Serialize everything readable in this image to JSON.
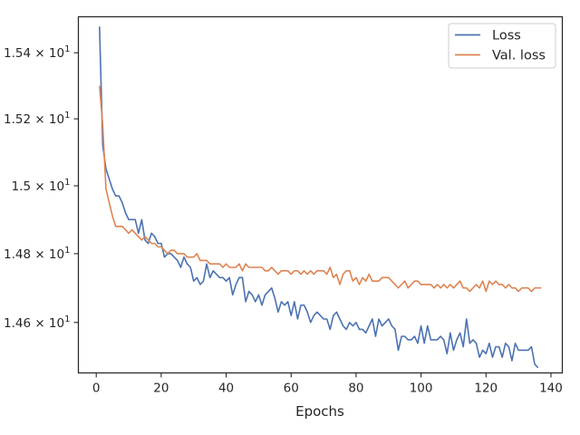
{
  "chart_data": {
    "type": "line",
    "title": "",
    "xlabel": "Epochs",
    "ylabel": "",
    "yscale": "log",
    "xlim": [
      -5.5,
      143.5
    ],
    "ylim": [
      14.455,
      15.51
    ],
    "grid": false,
    "legend_position": "top-right",
    "x_ticks": [
      0,
      20,
      40,
      60,
      80,
      100,
      120,
      140
    ],
    "x_tick_labels": [
      "0",
      "20",
      "40",
      "60",
      "80",
      "100",
      "120",
      "140"
    ],
    "y_ticks": [
      14.6,
      14.8,
      15.0,
      15.2,
      15.4
    ],
    "y_tick_labels": [
      {
        "mant": "1.46",
        "exp": "1"
      },
      {
        "mant": "1.48",
        "exp": "1"
      },
      {
        "mant": "1.5",
        "exp": "1"
      },
      {
        "mant": "1.52",
        "exp": "1"
      },
      {
        "mant": "1.54",
        "exp": "1"
      }
    ],
    "series": [
      {
        "name": "Loss",
        "color": "#4c72b0",
        "x_start": 1,
        "values": [
          15.48,
          15.12,
          15.05,
          15.02,
          14.99,
          14.97,
          14.97,
          14.95,
          14.92,
          14.9,
          14.9,
          14.9,
          14.86,
          14.9,
          14.84,
          14.83,
          14.86,
          14.85,
          14.83,
          14.83,
          14.79,
          14.8,
          14.8,
          14.79,
          14.78,
          14.76,
          14.79,
          14.77,
          14.76,
          14.72,
          14.73,
          14.71,
          14.72,
          14.77,
          14.73,
          14.75,
          14.74,
          14.73,
          14.73,
          14.72,
          14.73,
          14.68,
          14.71,
          14.73,
          14.73,
          14.66,
          14.69,
          14.68,
          14.66,
          14.68,
          14.65,
          14.68,
          14.69,
          14.7,
          14.67,
          14.63,
          14.66,
          14.65,
          14.66,
          14.62,
          14.66,
          14.61,
          14.65,
          14.65,
          14.63,
          14.6,
          14.62,
          14.63,
          14.62,
          14.61,
          14.61,
          14.58,
          14.62,
          14.63,
          14.61,
          14.59,
          14.58,
          14.6,
          14.59,
          14.6,
          14.58,
          14.58,
          14.57,
          14.59,
          14.61,
          14.56,
          14.61,
          14.59,
          14.6,
          14.61,
          14.59,
          14.58,
          14.52,
          14.56,
          14.56,
          14.55,
          14.55,
          14.56,
          14.54,
          14.59,
          14.54,
          14.59,
          14.55,
          14.55,
          14.55,
          14.56,
          14.55,
          14.51,
          14.57,
          14.52,
          14.55,
          14.57,
          14.53,
          14.61,
          14.54,
          14.55,
          14.54,
          14.5,
          14.52,
          14.51,
          14.54,
          14.5,
          14.53,
          14.53,
          14.5,
          14.54,
          14.53,
          14.49,
          14.54,
          14.52,
          14.52,
          14.52,
          14.52,
          14.53,
          14.48,
          14.47
        ]
      },
      {
        "name": "Val. loss",
        "color": "#dd8452",
        "x_start": 1,
        "values": [
          15.3,
          15.18,
          14.99,
          14.95,
          14.91,
          14.88,
          14.88,
          14.88,
          14.87,
          14.86,
          14.87,
          14.86,
          14.85,
          14.84,
          14.85,
          14.84,
          14.83,
          14.83,
          14.82,
          14.82,
          14.81,
          14.8,
          14.81,
          14.81,
          14.8,
          14.8,
          14.8,
          14.79,
          14.79,
          14.79,
          14.8,
          14.78,
          14.78,
          14.78,
          14.77,
          14.77,
          14.77,
          14.77,
          14.76,
          14.77,
          14.76,
          14.76,
          14.76,
          14.77,
          14.75,
          14.77,
          14.76,
          14.76,
          14.76,
          14.76,
          14.76,
          14.75,
          14.75,
          14.76,
          14.75,
          14.74,
          14.75,
          14.75,
          14.75,
          14.74,
          14.75,
          14.75,
          14.74,
          14.75,
          14.74,
          14.75,
          14.74,
          14.75,
          14.75,
          14.75,
          14.74,
          14.76,
          14.73,
          14.74,
          14.71,
          14.74,
          14.75,
          14.75,
          14.72,
          14.73,
          14.71,
          14.73,
          14.72,
          14.74,
          14.72,
          14.72,
          14.72,
          14.73,
          14.73,
          14.73,
          14.72,
          14.71,
          14.7,
          14.71,
          14.72,
          14.7,
          14.71,
          14.72,
          14.72,
          14.71,
          14.71,
          14.71,
          14.71,
          14.7,
          14.71,
          14.7,
          14.71,
          14.7,
          14.71,
          14.7,
          14.71,
          14.72,
          14.7,
          14.7,
          14.69,
          14.7,
          14.71,
          14.7,
          14.72,
          14.69,
          14.72,
          14.71,
          14.72,
          14.71,
          14.71,
          14.7,
          14.71,
          14.7,
          14.7,
          14.69,
          14.7,
          14.7,
          14.7,
          14.69,
          14.7,
          14.7,
          14.7
        ]
      }
    ]
  }
}
